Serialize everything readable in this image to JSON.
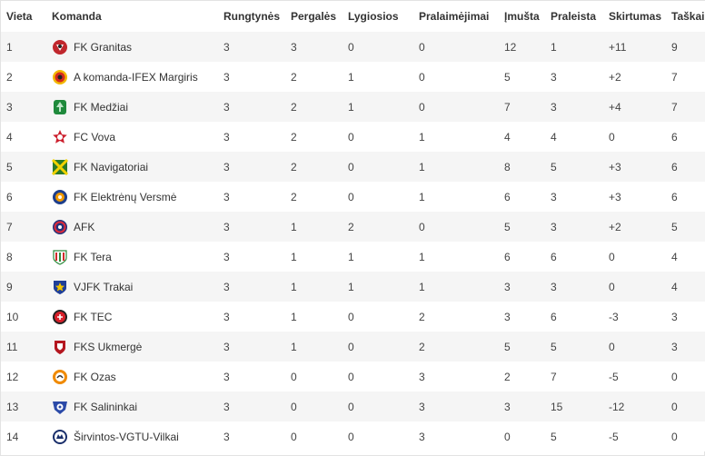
{
  "headers": {
    "pos": "Vieta",
    "team": "Komanda",
    "played": "Rungtynės",
    "won": "Pergalės",
    "drawn": "Lygiosios",
    "lost": "Pralaimėjimai",
    "gf": "Įmušta",
    "ga": "Praleista",
    "diff": "Skirtumas",
    "pts": "Taškai"
  },
  "rows": [
    {
      "pos": "1",
      "team": "FK Granitas",
      "crest": "granitas-crest-icon",
      "played": "3",
      "won": "3",
      "drawn": "0",
      "lost": "0",
      "gf": "12",
      "ga": "1",
      "diff": "+11",
      "pts": "9"
    },
    {
      "pos": "2",
      "team": "A komanda-IFEX Margiris",
      "crest": "margiris-crest-icon",
      "played": "3",
      "won": "2",
      "drawn": "1",
      "lost": "0",
      "gf": "5",
      "ga": "3",
      "diff": "+2",
      "pts": "7"
    },
    {
      "pos": "3",
      "team": "FK Medžiai",
      "crest": "medziai-crest-icon",
      "played": "3",
      "won": "2",
      "drawn": "1",
      "lost": "0",
      "gf": "7",
      "ga": "3",
      "diff": "+4",
      "pts": "7"
    },
    {
      "pos": "4",
      "team": "FC Vova",
      "crest": "vova-crest-icon",
      "played": "3",
      "won": "2",
      "drawn": "0",
      "lost": "1",
      "gf": "4",
      "ga": "4",
      "diff": "0",
      "pts": "6"
    },
    {
      "pos": "5",
      "team": "FK Navigatoriai",
      "crest": "navigatoriai-crest-icon",
      "played": "3",
      "won": "2",
      "drawn": "0",
      "lost": "1",
      "gf": "8",
      "ga": "5",
      "diff": "+3",
      "pts": "6"
    },
    {
      "pos": "6",
      "team": "FK Elektrėnų Versmė",
      "crest": "versme-crest-icon",
      "played": "3",
      "won": "2",
      "drawn": "0",
      "lost": "1",
      "gf": "6",
      "ga": "3",
      "diff": "+3",
      "pts": "6"
    },
    {
      "pos": "7",
      "team": "AFK",
      "crest": "afk-crest-icon",
      "played": "3",
      "won": "1",
      "drawn": "2",
      "lost": "0",
      "gf": "5",
      "ga": "3",
      "diff": "+2",
      "pts": "5"
    },
    {
      "pos": "8",
      "team": "FK Tera",
      "crest": "tera-crest-icon",
      "played": "3",
      "won": "1",
      "drawn": "1",
      "lost": "1",
      "gf": "6",
      "ga": "6",
      "diff": "0",
      "pts": "4"
    },
    {
      "pos": "9",
      "team": "VJFK Trakai",
      "crest": "trakai-crest-icon",
      "played": "3",
      "won": "1",
      "drawn": "1",
      "lost": "1",
      "gf": "3",
      "ga": "3",
      "diff": "0",
      "pts": "4"
    },
    {
      "pos": "10",
      "team": "FK TEC",
      "crest": "tec-crest-icon",
      "played": "3",
      "won": "1",
      "drawn": "0",
      "lost": "2",
      "gf": "3",
      "ga": "6",
      "diff": "-3",
      "pts": "3"
    },
    {
      "pos": "11",
      "team": "FKS Ukmergė",
      "crest": "ukmerge-crest-icon",
      "played": "3",
      "won": "1",
      "drawn": "0",
      "lost": "2",
      "gf": "5",
      "ga": "5",
      "diff": "0",
      "pts": "3"
    },
    {
      "pos": "12",
      "team": "FK Ozas",
      "crest": "ozas-crest-icon",
      "played": "3",
      "won": "0",
      "drawn": "0",
      "lost": "3",
      "gf": "2",
      "ga": "7",
      "diff": "-5",
      "pts": "0"
    },
    {
      "pos": "13",
      "team": "FK Salininkai",
      "crest": "salininkai-crest-icon",
      "played": "3",
      "won": "0",
      "drawn": "0",
      "lost": "3",
      "gf": "3",
      "ga": "15",
      "diff": "-12",
      "pts": "0"
    },
    {
      "pos": "14",
      "team": "Širvintos-VGTU-Vilkai",
      "crest": "vilkai-crest-icon",
      "played": "3",
      "won": "0",
      "drawn": "0",
      "lost": "3",
      "gf": "0",
      "ga": "5",
      "diff": "-5",
      "pts": "0"
    }
  ]
}
